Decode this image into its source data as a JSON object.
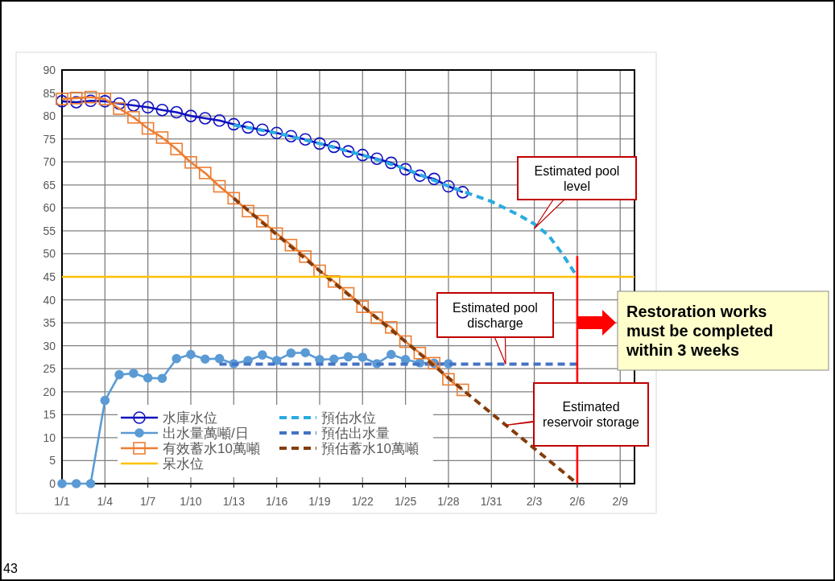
{
  "chart_data": {
    "type": "line",
    "xlim": [
      "--01-01",
      "--02-10"
    ],
    "xticks": [
      {
        "value": "--01-01",
        "label": "1/1"
      },
      {
        "value": "--01-04",
        "label": "1/4"
      },
      {
        "value": "--01-07",
        "label": "1/7"
      },
      {
        "value": "--01-10",
        "label": "1/10"
      },
      {
        "value": "--01-13",
        "label": "1/13"
      },
      {
        "value": "--01-16",
        "label": "1/16"
      },
      {
        "value": "--01-19",
        "label": "1/19"
      },
      {
        "value": "--01-22",
        "label": "1/22"
      },
      {
        "value": "--01-25",
        "label": "1/25"
      },
      {
        "value": "--01-28",
        "label": "1/28"
      },
      {
        "value": "--01-31",
        "label": "1/31"
      },
      {
        "value": "--02-03",
        "label": "2/3"
      },
      {
        "value": "--02-06",
        "label": "2/6"
      },
      {
        "value": "--02-09",
        "label": "2/9"
      }
    ],
    "ylim": [
      0,
      90
    ],
    "yticks": [
      0,
      5,
      10,
      15,
      20,
      25,
      30,
      35,
      40,
      45,
      50,
      55,
      60,
      65,
      70,
      75,
      80,
      85,
      90
    ],
    "grid": true,
    "legend": "bottom left",
    "series": [
      {
        "name": "水庫水位",
        "color": "#1010c0",
        "marker": "circle",
        "line_style": "solid",
        "x": [
          "--01-01",
          "--01-02",
          "--01-03",
          "--01-04",
          "--01-05",
          "--01-06",
          "--01-07",
          "--01-08",
          "--01-09",
          "--01-10",
          "--01-11",
          "--01-12",
          "--01-13",
          "--01-14",
          "--01-15",
          "--01-16",
          "--01-17",
          "--01-18",
          "--01-19",
          "--01-20",
          "--01-21",
          "--01-22",
          "--01-23",
          "--01-24",
          "--01-25",
          "--01-26",
          "--01-27",
          "--01-28",
          "--01-29"
        ],
        "values": [
          83.2,
          83.0,
          83.3,
          83.2,
          82.7,
          82.3,
          81.9,
          81.3,
          80.8,
          80.0,
          79.5,
          79.0,
          78.2,
          77.5,
          77.0,
          76.3,
          75.6,
          74.9,
          74.0,
          73.3,
          72.3,
          71.5,
          70.7,
          69.8,
          68.4,
          67.0,
          66.3,
          64.7,
          63.4
        ]
      },
      {
        "name": "預估水位",
        "color": "#29abe2",
        "marker": "none",
        "line_style": "dashed",
        "x": [
          "--01-13",
          "--01-16",
          "--01-19",
          "--01-22",
          "--01-25",
          "--01-28",
          "--01-31",
          "--02-02",
          "--02-03",
          "--02-04",
          "--02-05",
          "--02-06"
        ],
        "values": [
          78.0,
          76.3,
          74.0,
          71.5,
          68.5,
          64.7,
          61.4,
          58.3,
          56.5,
          54.0,
          49.8,
          45.0
        ]
      },
      {
        "name": "出水量萬噸/日",
        "color": "#5b9bd5",
        "marker": "circle",
        "line_style": "solid",
        "x": [
          "--01-01",
          "--01-02",
          "--01-03",
          "--01-04",
          "--01-05",
          "--01-06",
          "--01-07",
          "--01-08",
          "--01-09",
          "--01-10",
          "--01-11",
          "--01-12",
          "--01-13",
          "--01-14",
          "--01-15",
          "--01-16",
          "--01-17",
          "--01-18",
          "--01-19",
          "--01-20",
          "--01-21",
          "--01-22",
          "--01-23",
          "--01-24",
          "--01-25",
          "--01-26",
          "--01-27",
          "--01-28"
        ],
        "values": [
          0,
          0,
          0,
          18.1,
          23.7,
          24.0,
          23.0,
          22.9,
          27.2,
          28.1,
          27.1,
          27.2,
          26.1,
          26.8,
          28.0,
          26.8,
          28.4,
          28.5,
          27.0,
          27.1,
          27.6,
          27.5,
          26.1,
          28.1,
          27.0,
          26.3,
          26.2,
          26.1
        ]
      },
      {
        "name": "預估出水量",
        "color": "#4472c4",
        "marker": "none",
        "line_style": "dashed",
        "x": [
          "--01-12",
          "--02-06"
        ],
        "values": [
          26.0,
          26.0
        ]
      },
      {
        "name": "有效蓄水10萬噸",
        "color": "#ed7d31",
        "marker": "square",
        "line_style": "solid",
        "x": [
          "--01-01",
          "--01-02",
          "--01-03",
          "--01-04",
          "--01-05",
          "--01-06",
          "--01-07",
          "--01-08",
          "--01-09",
          "--01-10",
          "--01-11",
          "--01-12",
          "--01-13",
          "--01-14",
          "--01-15",
          "--01-16",
          "--01-17",
          "--01-18",
          "--01-19",
          "--01-20",
          "--01-21",
          "--01-22",
          "--01-23",
          "--01-24",
          "--01-25",
          "--01-26",
          "--01-27",
          "--01-28",
          "--01-29"
        ],
        "values": [
          83.7,
          83.9,
          84.1,
          83.7,
          81.6,
          79.7,
          77.3,
          75.3,
          72.8,
          69.9,
          67.6,
          64.7,
          62.1,
          59.3,
          57.1,
          54.4,
          51.9,
          49.4,
          46.3,
          44.0,
          41.4,
          38.5,
          36.1,
          34.0,
          30.9,
          28.4,
          26.2,
          22.7,
          20.4
        ]
      },
      {
        "name": "預估蓄水10萬噸",
        "color": "#843c0c",
        "marker": "none",
        "line_style": "dashed",
        "x": [
          "--01-13",
          "--01-19",
          "--01-25",
          "--01-29",
          "--02-06"
        ],
        "values": [
          62.1,
          46.3,
          30.9,
          20.4,
          0
        ]
      },
      {
        "name": "呆水位",
        "color": "#ffc000",
        "marker": "none",
        "line_style": "solid",
        "x": [
          "--01-01",
          "--02-10"
        ],
        "values": [
          45,
          45
        ]
      },
      {
        "color": "#ff0000",
        "marker": "none",
        "line_style": "solid",
        "x": [
          "--02-06",
          "--02-06"
        ],
        "values": [
          49.5,
          0
        ]
      }
    ],
    "annotations": [
      {
        "text": "Estimated pool level",
        "x": "--02-03",
        "y": 55.5
      },
      {
        "text": "Estimated pool discharge",
        "x": "--02-01",
        "y": 26
      },
      {
        "text": "Estimated reservoir storage",
        "x": "--02-01",
        "y": 12.7
      },
      "Restoration works must be completed within 3 weeks",
      "43"
    ]
  }
}
